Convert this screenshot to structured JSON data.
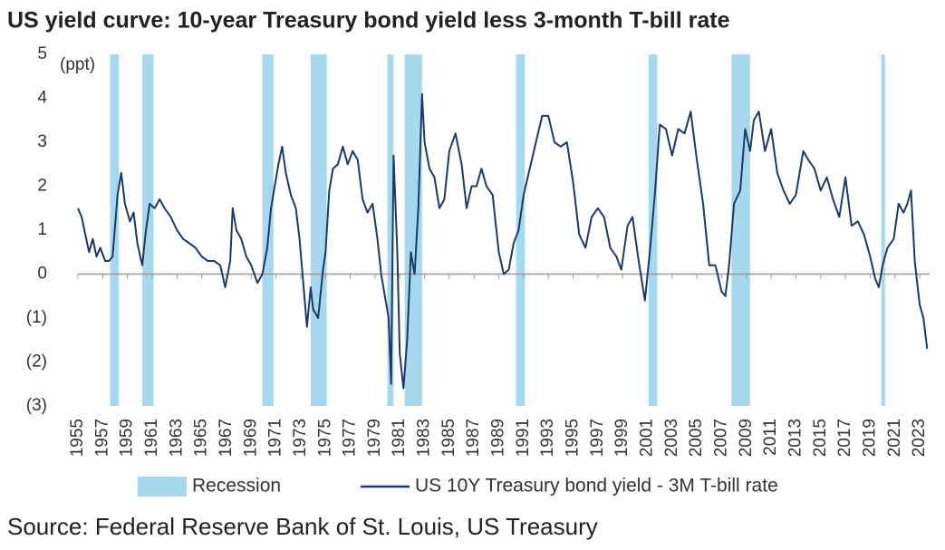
{
  "chart_data": {
    "type": "line",
    "title": "US yield curve: 10-year Treasury bond yield less 3-month T-bill rate",
    "y_label": "(ppt)",
    "source": "Source: Federal Reserve Bank of St. Louis, US Treasury",
    "x": [
      1955.0,
      1955.3,
      1955.6,
      1955.9,
      1956.2,
      1956.5,
      1956.8,
      1957.2,
      1957.5,
      1957.8,
      1958.2,
      1958.5,
      1958.8,
      1959.2,
      1959.5,
      1959.8,
      1960.2,
      1960.5,
      1960.8,
      1961.2,
      1961.6,
      1962.0,
      1962.5,
      1963.0,
      1963.5,
      1964.0,
      1964.5,
      1965.0,
      1965.5,
      1966.0,
      1966.5,
      1966.9,
      1967.3,
      1967.5,
      1967.8,
      1968.2,
      1968.6,
      1969.0,
      1969.5,
      1969.9,
      1970.3,
      1970.6,
      1970.9,
      1971.2,
      1971.5,
      1971.8,
      1972.2,
      1972.6,
      1972.9,
      1973.2,
      1973.5,
      1973.8,
      1974.0,
      1974.4,
      1974.8,
      1975.0,
      1975.3,
      1975.6,
      1976.0,
      1976.4,
      1976.8,
      1977.2,
      1977.6,
      1978.0,
      1978.4,
      1978.8,
      1979.2,
      1979.5,
      1979.8,
      1980.1,
      1980.3,
      1980.5,
      1980.8,
      1981.0,
      1981.3,
      1981.6,
      1981.9,
      1982.2,
      1982.5,
      1982.8,
      1983.0,
      1983.4,
      1983.8,
      1984.2,
      1984.6,
      1985.0,
      1985.5,
      1986.0,
      1986.4,
      1986.8,
      1987.2,
      1987.6,
      1988.0,
      1988.5,
      1989.0,
      1989.4,
      1989.8,
      1990.2,
      1990.6,
      1991.0,
      1991.5,
      1992.0,
      1992.5,
      1993.0,
      1993.5,
      1994.0,
      1994.5,
      1995.0,
      1995.5,
      1996.0,
      1996.5,
      1997.0,
      1997.5,
      1998.0,
      1998.5,
      1998.9,
      1999.4,
      1999.8,
      2000.3,
      2000.8,
      2001.2,
      2001.6,
      2002.0,
      2002.5,
      2003.0,
      2003.5,
      2004.0,
      2004.5,
      2005.0,
      2005.5,
      2006.0,
      2006.5,
      2007.0,
      2007.3,
      2007.6,
      2008.0,
      2008.5,
      2008.9,
      2009.3,
      2009.6,
      2010.0,
      2010.5,
      2011.0,
      2011.5,
      2012.0,
      2012.5,
      2013.0,
      2013.6,
      2014.0,
      2014.5,
      2015.0,
      2015.5,
      2016.0,
      2016.5,
      2017.0,
      2017.5,
      2018.0,
      2018.5,
      2019.0,
      2019.4,
      2019.7,
      2020.0,
      2020.4,
      2020.9,
      2021.3,
      2021.7,
      2022.0,
      2022.3,
      2022.6,
      2022.8,
      2023.0,
      2023.3,
      2023.6
    ],
    "series": [
      {
        "name": "US 10Y Treasury bond yield - 3M T-bill rate",
        "color": "#1b3a6b",
        "values": [
          1.5,
          1.3,
          0.9,
          0.5,
          0.8,
          0.4,
          0.6,
          0.3,
          0.3,
          0.4,
          1.8,
          2.3,
          1.6,
          1.2,
          1.4,
          0.7,
          0.2,
          1.0,
          1.6,
          1.5,
          1.7,
          1.5,
          1.3,
          1.0,
          0.8,
          0.7,
          0.6,
          0.4,
          0.3,
          0.3,
          0.2,
          -0.3,
          0.3,
          1.5,
          1.0,
          0.8,
          0.4,
          0.2,
          -0.2,
          0.0,
          0.6,
          1.5,
          2.0,
          2.5,
          2.9,
          2.3,
          1.8,
          1.5,
          0.8,
          -0.2,
          -1.2,
          -0.3,
          -0.8,
          -1.0,
          0.1,
          0.5,
          1.9,
          2.4,
          2.5,
          2.9,
          2.5,
          2.8,
          2.6,
          1.7,
          1.4,
          1.6,
          0.8,
          0.0,
          -0.5,
          -1.0,
          -2.5,
          2.7,
          0.5,
          -1.8,
          -2.6,
          -1.5,
          0.5,
          0.0,
          1.5,
          4.1,
          3.0,
          2.4,
          2.2,
          1.5,
          1.7,
          2.8,
          3.2,
          2.5,
          1.5,
          2.0,
          2.0,
          2.4,
          2.0,
          1.8,
          0.5,
          0.0,
          0.1,
          0.7,
          1.0,
          1.8,
          2.4,
          3.0,
          3.6,
          3.6,
          3.0,
          2.9,
          3.0,
          2.1,
          0.9,
          0.6,
          1.3,
          1.5,
          1.3,
          0.6,
          0.4,
          0.1,
          1.1,
          1.3,
          0.3,
          -0.6,
          0.5,
          1.8,
          3.4,
          3.3,
          2.7,
          3.3,
          3.2,
          3.7,
          2.6,
          1.6,
          0.2,
          0.2,
          -0.4,
          -0.5,
          0.2,
          1.6,
          1.9,
          3.3,
          2.8,
          3.5,
          3.7,
          2.8,
          3.3,
          2.3,
          1.9,
          1.6,
          1.8,
          2.8,
          2.6,
          2.4,
          1.9,
          2.2,
          1.7,
          1.3,
          2.2,
          1.1,
          1.2,
          0.9,
          0.4,
          -0.1,
          -0.3,
          0.2,
          0.6,
          0.8,
          1.6,
          1.4,
          1.6,
          1.9,
          0.3,
          -0.2,
          -0.7,
          -1.0,
          -1.7
        ]
      }
    ],
    "recessions": {
      "name": "Recession",
      "color": "#a6d9ee",
      "ranges": [
        [
          1957.6,
          1958.3
        ],
        [
          1960.2,
          1961.1
        ],
        [
          1969.9,
          1970.8
        ],
        [
          1973.8,
          1975.1
        ],
        [
          1980.0,
          1980.5
        ],
        [
          1981.4,
          1982.8
        ],
        [
          1990.4,
          1991.1
        ],
        [
          2001.1,
          2001.8
        ],
        [
          2007.8,
          2009.3
        ],
        [
          2019.9,
          2020.2
        ]
      ]
    },
    "xlim": [
      1955,
      2023.8
    ],
    "xticks": [
      1955,
      1957,
      1959,
      1961,
      1963,
      1965,
      1967,
      1969,
      1971,
      1973,
      1975,
      1977,
      1979,
      1981,
      1983,
      1985,
      1987,
      1989,
      1991,
      1993,
      1995,
      1997,
      1999,
      2001,
      2003,
      2005,
      2007,
      2009,
      2011,
      2013,
      2015,
      2017,
      2019,
      2021,
      2023
    ],
    "ylim": [
      -3,
      5
    ],
    "yticks": [
      {
        "value": -3,
        "label": "(3)"
      },
      {
        "value": -2,
        "label": "(2)"
      },
      {
        "value": -1,
        "label": "(1)"
      },
      0,
      1,
      2,
      3,
      4,
      5
    ]
  }
}
